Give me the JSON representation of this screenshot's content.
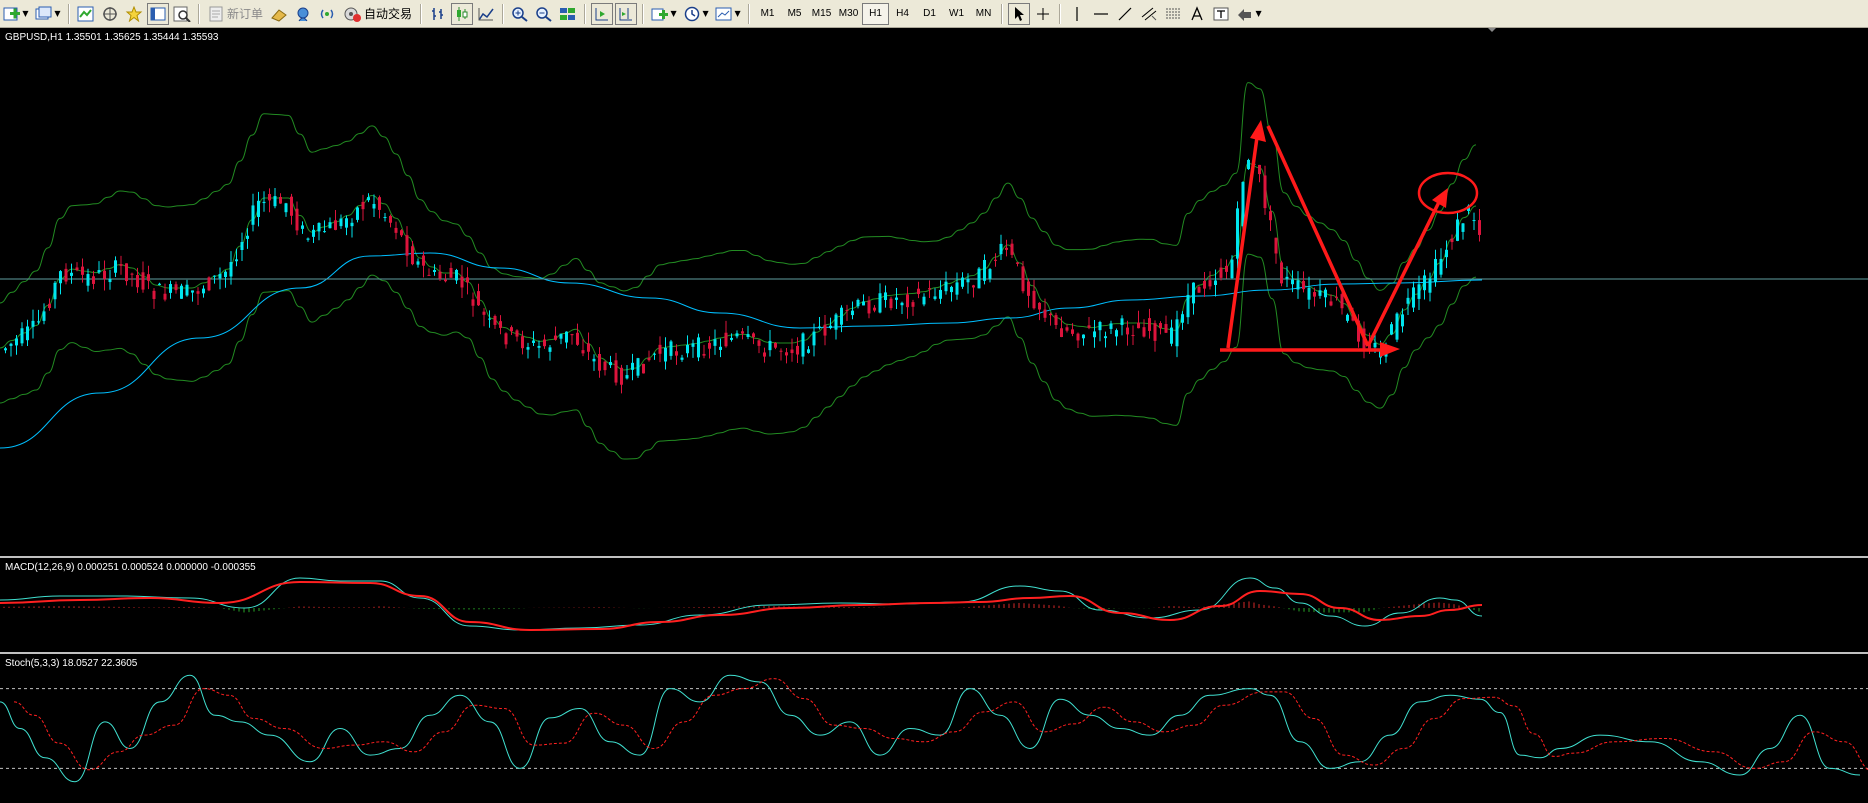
{
  "toolbar": {
    "buttons": [
      {
        "icon": "new-chart-icon",
        "dropdown": true
      },
      {
        "icon": "profiles-icon",
        "dropdown": true
      },
      {
        "icon": "market-watch-icon"
      },
      {
        "icon": "navigator-icon"
      },
      {
        "icon": "favorites-icon"
      },
      {
        "icon": "data-window-icon"
      },
      {
        "icon": "strategy-tester-icon"
      }
    ],
    "new_order_label": "新订单",
    "auto_trading_label": "自动交易",
    "timeframes": [
      "M1",
      "M5",
      "M15",
      "M30",
      "H1",
      "H4",
      "D1",
      "W1",
      "MN"
    ],
    "active_timeframe": "H1"
  },
  "main_pane": {
    "label": "GBPUSD,H1  1.35501 1.35625 1.35444 1.35593",
    "symbol": "GBPUSD",
    "timeframe": "H1",
    "ohlc": {
      "open": 1.35501,
      "high": 1.35625,
      "low": 1.35444,
      "close": 1.35593
    },
    "bull_color": "#00e5ee",
    "bear_color": "#dc143c",
    "bands_color": "#228b22",
    "ma_color": "#00bfff",
    "annotation_color": "#ff1a1a"
  },
  "macd_pane": {
    "label": "MACD(12,26,9) 0.000251 0.000524 0.000000 -0.000355",
    "macd_color": "#40e0d0",
    "signal_color": "#ff2020"
  },
  "stoch_pane": {
    "label": "Stoch(5,3,3) 18.0527 22.3605",
    "main_color": "#40e0d0",
    "signal_color": "#ff2020",
    "levels": [
      80,
      20
    ]
  }
}
